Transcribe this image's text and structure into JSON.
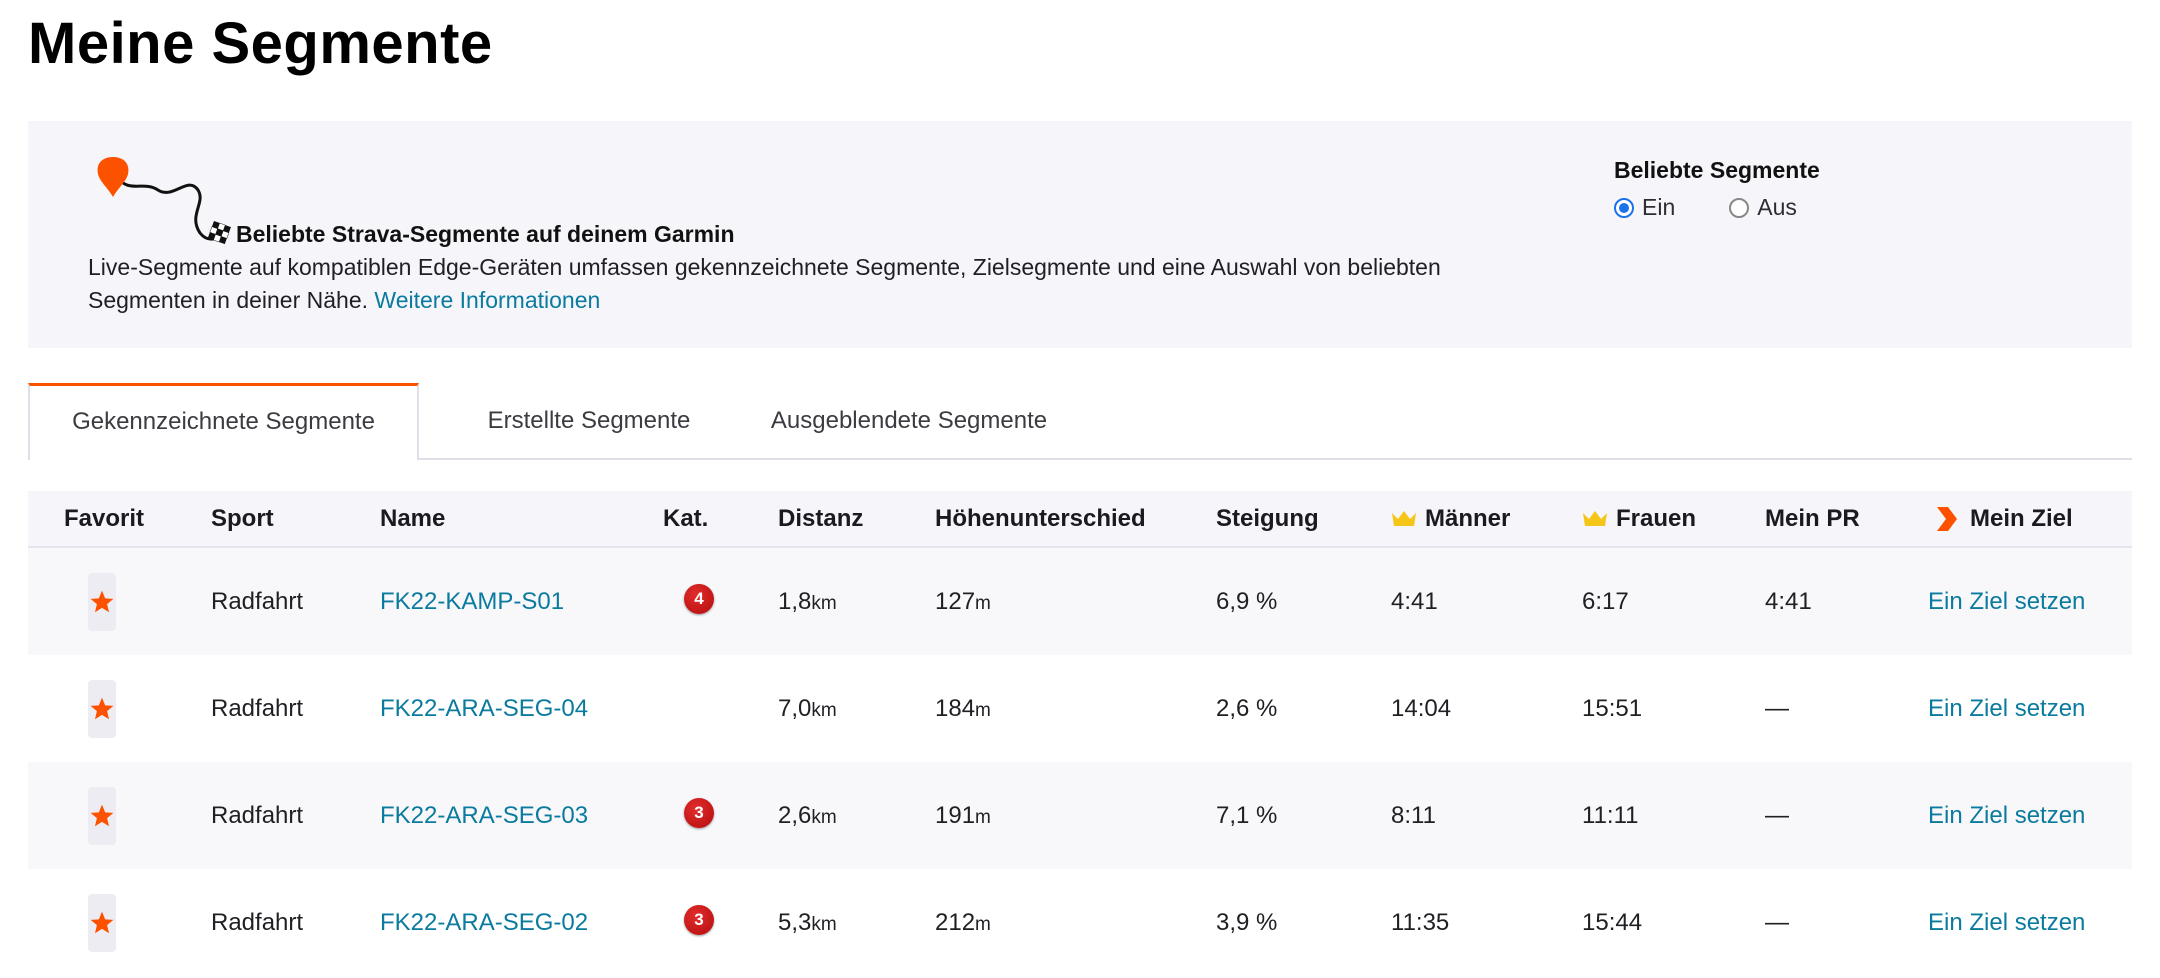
{
  "page": {
    "title": "Meine Segmente"
  },
  "info": {
    "heading": "Beliebte Strava-Segmente auf deinem Garmin",
    "text": "Live-Segmente auf kompatiblen Edge-Geräten umfassen gekennzeichnete Segmente, Zielsegmente und eine Auswahl von beliebten Segmenten in deiner Nähe.",
    "link": "Weitere Informationen",
    "popular": {
      "title": "Beliebte Segmente",
      "options": [
        {
          "label": "Ein",
          "checked": true
        },
        {
          "label": "Aus",
          "checked": false
        }
      ]
    }
  },
  "tabs": [
    {
      "label": "Gekennzeichnete Segmente",
      "active": true
    },
    {
      "label": "Erstellte Segmente",
      "active": false
    },
    {
      "label": "Ausgeblendete Segmente",
      "active": false
    }
  ],
  "table": {
    "headers": {
      "favorite": "Favorit",
      "sport": "Sport",
      "name": "Name",
      "cat": "Kat.",
      "distance": "Distanz",
      "elevation": "Höhenunterschied",
      "grade": "Steigung",
      "men": "Männer",
      "women": "Frauen",
      "pr": "Mein PR",
      "goal": "Mein Ziel"
    },
    "rows": [
      {
        "sport": "Radfahrt",
        "name": "FK22-KAMP-S01",
        "cat": "4",
        "distance": "1,8",
        "distance_unit": "km",
        "elevation": "127",
        "elevation_unit": "m",
        "grade": "6,9 %",
        "men": "4:41",
        "women": "6:17",
        "pr": "4:41",
        "goal": "Ein Ziel setzen"
      },
      {
        "sport": "Radfahrt",
        "name": "FK22-ARA-SEG-04",
        "cat": "",
        "distance": "7,0",
        "distance_unit": "km",
        "elevation": "184",
        "elevation_unit": "m",
        "grade": "2,6 %",
        "men": "14:04",
        "women": "15:51",
        "pr": "—",
        "goal": "Ein Ziel setzen"
      },
      {
        "sport": "Radfahrt",
        "name": "FK22-ARA-SEG-03",
        "cat": "3",
        "distance": "2,6",
        "distance_unit": "km",
        "elevation": "191",
        "elevation_unit": "m",
        "grade": "7,1 %",
        "men": "8:11",
        "women": "11:11",
        "pr": "—",
        "goal": "Ein Ziel setzen"
      },
      {
        "sport": "Radfahrt",
        "name": "FK22-ARA-SEG-02",
        "cat": "3",
        "distance": "5,3",
        "distance_unit": "km",
        "elevation": "212",
        "elevation_unit": "m",
        "grade": "3,9 %",
        "men": "11:35",
        "women": "15:44",
        "pr": "—",
        "goal": "Ein Ziel setzen"
      }
    ]
  },
  "colors": {
    "accent": "#fc5200",
    "link": "#0a7b9e",
    "radio": "#1b73e8",
    "crown": "#f5c518",
    "panel": "#f5f5fa"
  }
}
